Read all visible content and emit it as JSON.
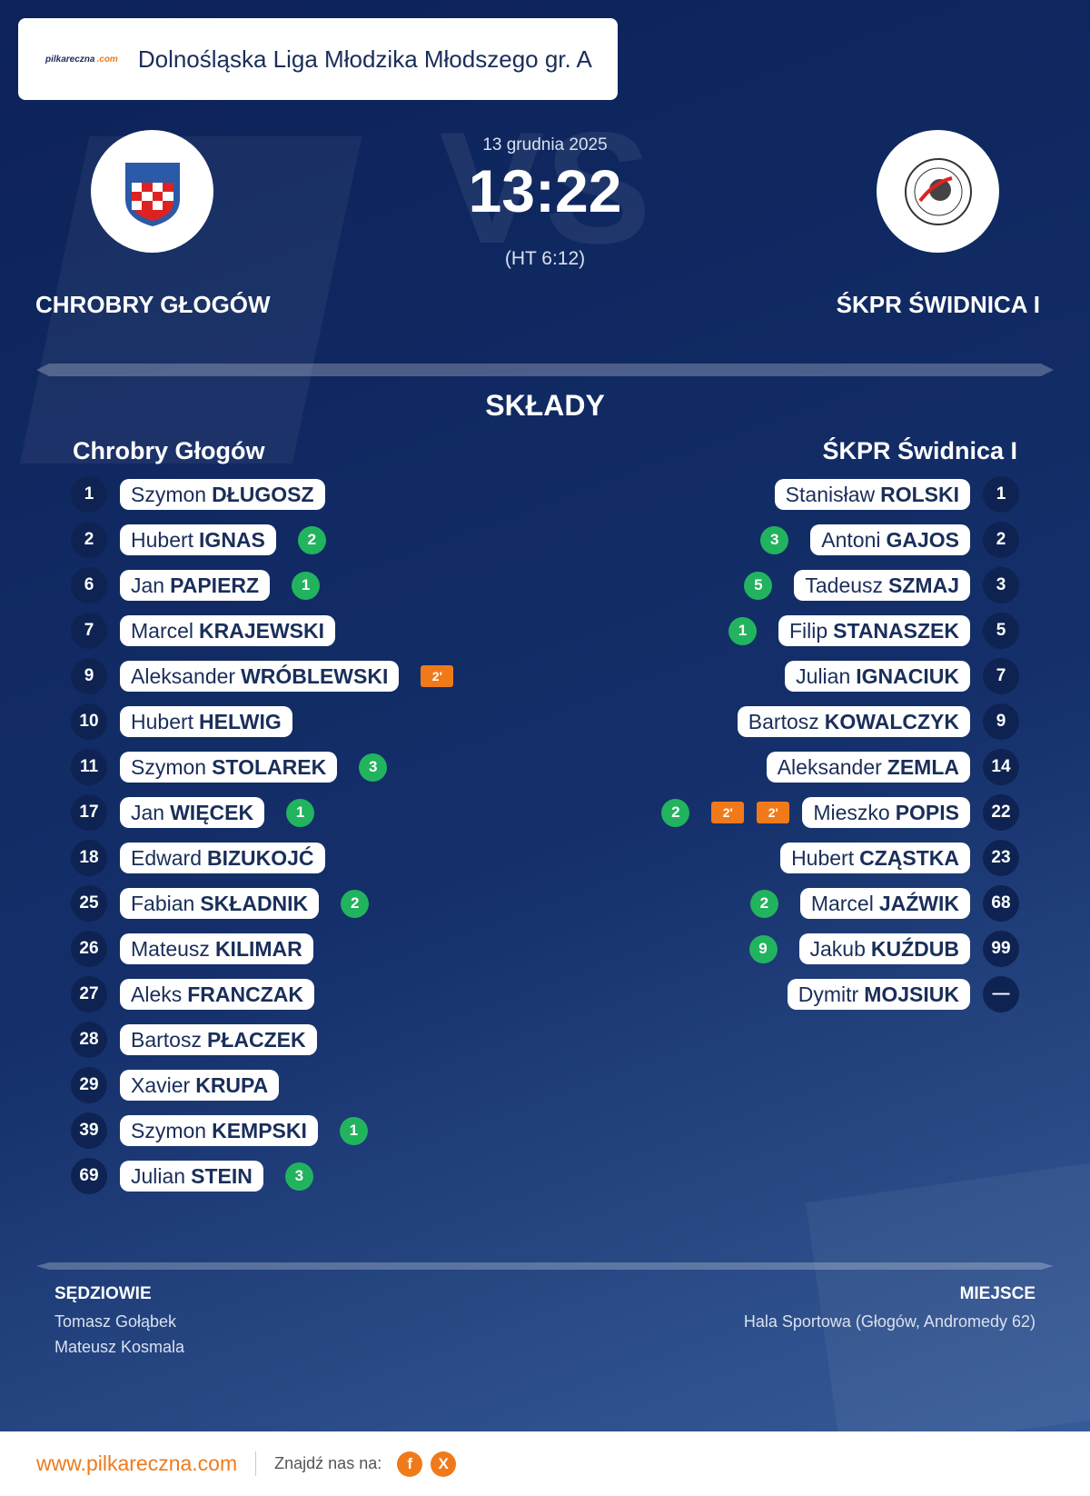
{
  "header": {
    "logo_brand": "pilkareczna",
    "logo_tld": ".com",
    "league": "Dolnośląska Liga Młodzika Młodszego gr. A"
  },
  "match": {
    "vs": "VS",
    "date": "13 grudnia 2025",
    "score": "13:22",
    "halftime": "(HT 6:12)",
    "home": "CHROBRY GŁOGÓW",
    "away": "ŚKPR ŚWIDNICA I"
  },
  "lineups": {
    "title": "SKŁADY",
    "home": {
      "name": "Chrobry Głogów",
      "players": [
        {
          "number": 1,
          "first": "Szymon",
          "last": "DŁUGOSZ"
        },
        {
          "number": 2,
          "first": "Hubert",
          "last": "IGNAS",
          "goals": 2
        },
        {
          "number": 6,
          "first": "Jan",
          "last": "PAPIERZ",
          "goals": 1
        },
        {
          "number": 7,
          "first": "Marcel",
          "last": "KRAJEWSKI"
        },
        {
          "number": 9,
          "first": "Aleksander",
          "last": "WRÓBLEWSKI",
          "penalties": [
            "2'"
          ]
        },
        {
          "number": 10,
          "first": "Hubert",
          "last": "HELWIG"
        },
        {
          "number": 11,
          "first": "Szymon",
          "last": "STOLAREK",
          "goals": 3
        },
        {
          "number": 17,
          "first": "Jan",
          "last": "WIĘCEK",
          "goals": 1
        },
        {
          "number": 18,
          "first": "Edward",
          "last": "BIZUKOJĆ"
        },
        {
          "number": 25,
          "first": "Fabian",
          "last": "SKŁADNIK",
          "goals": 2
        },
        {
          "number": 26,
          "first": "Mateusz",
          "last": "KILIMAR"
        },
        {
          "number": 27,
          "first": "Aleks",
          "last": "FRANCZAK"
        },
        {
          "number": 28,
          "first": "Bartosz",
          "last": "PŁACZEK"
        },
        {
          "number": 29,
          "first": "Xavier",
          "last": "KRUPA"
        },
        {
          "number": 39,
          "first": "Szymon",
          "last": "KEMPSKI",
          "goals": 1
        },
        {
          "number": 69,
          "first": "Julian",
          "last": "STEIN",
          "goals": 3
        }
      ]
    },
    "away": {
      "name": "ŚKPR Świdnica I",
      "players": [
        {
          "number": 1,
          "first": "Stanisław",
          "last": "ROLSKI"
        },
        {
          "number": 2,
          "first": "Antoni",
          "last": "GAJOS",
          "goals": 3
        },
        {
          "number": 3,
          "first": "Tadeusz",
          "last": "SZMAJ",
          "goals": 5
        },
        {
          "number": 5,
          "first": "Filip",
          "last": "STANASZEK",
          "goals": 1
        },
        {
          "number": 7,
          "first": "Julian",
          "last": "IGNACIUK"
        },
        {
          "number": 9,
          "first": "Bartosz",
          "last": "KOWALCZYK"
        },
        {
          "number": 14,
          "first": "Aleksander",
          "last": "ZEMLA"
        },
        {
          "number": 22,
          "first": "Mieszko",
          "last": "POPIS",
          "goals": 2,
          "penalties": [
            "2'",
            "2'"
          ]
        },
        {
          "number": 23,
          "first": "Hubert",
          "last": "CZĄSTKA"
        },
        {
          "number": 68,
          "first": "Marcel",
          "last": "JAŹWIK",
          "goals": 2
        },
        {
          "number": 99,
          "first": "Jakub",
          "last": "KUŹDUB",
          "goals": 9
        },
        {
          "number": "—",
          "first": "Dymitr",
          "last": "MOJSIUK"
        }
      ]
    }
  },
  "officials": {
    "title": "SĘDZIOWIE",
    "names": [
      "Tomasz Gołąbek",
      "Mateusz Kosmala"
    ]
  },
  "venue": {
    "title": "MIEJSCE",
    "text": "Hala Sportowa (Głogów, Andromedy 62)"
  },
  "footer": {
    "url": "www.pilkareczna.com",
    "follow": "Znajdź nas na:",
    "social": [
      "f",
      "X"
    ]
  }
}
